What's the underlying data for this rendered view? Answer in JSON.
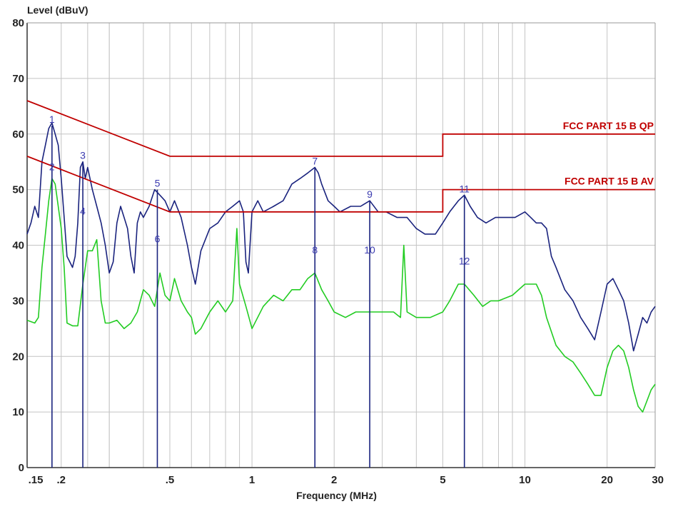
{
  "chart_data": {
    "type": "line",
    "title": "",
    "ylabel": "Level (dBuV)",
    "xlabel": "Frequency (MHz)",
    "x_scale": "log",
    "xlim": [
      0.15,
      30
    ],
    "ylim": [
      0,
      80
    ],
    "grid": true,
    "y_ticks": [
      {
        "v": 0,
        "label": "0"
      },
      {
        "v": 10,
        "label": "10"
      },
      {
        "v": 20,
        "label": "20"
      },
      {
        "v": 30,
        "label": "30"
      },
      {
        "v": 40,
        "label": "40"
      },
      {
        "v": 50,
        "label": "50"
      },
      {
        "v": 60,
        "label": "60"
      },
      {
        "v": 70,
        "label": "70"
      },
      {
        "v": 80,
        "label": "80"
      }
    ],
    "x_ticks": [
      {
        "v": 0.15,
        "label": ".15"
      },
      {
        "v": 0.2,
        "label": ".2"
      },
      {
        "v": 0.5,
        "label": ".5"
      },
      {
        "v": 1,
        "label": "1"
      },
      {
        "v": 2,
        "label": "2"
      },
      {
        "v": 5,
        "label": "5"
      },
      {
        "v": 10,
        "label": "10"
      },
      {
        "v": 20,
        "label": "20"
      },
      {
        "v": 30,
        "label": "30"
      }
    ],
    "limit_lines": [
      {
        "name": "FCC PART 15 B QP",
        "color": "#c00000",
        "points": [
          [
            0.15,
            66
          ],
          [
            0.5,
            56
          ],
          [
            5,
            56
          ],
          [
            5,
            60
          ],
          [
            30,
            60
          ]
        ]
      },
      {
        "name": "FCC PART 15 B AV",
        "color": "#c00000",
        "points": [
          [
            0.15,
            56
          ],
          [
            0.5,
            46
          ],
          [
            5,
            46
          ],
          [
            5,
            50
          ],
          [
            30,
            50
          ]
        ]
      }
    ],
    "series": [
      {
        "color": "#1a237e",
        "points": [
          [
            0.15,
            42
          ],
          [
            0.155,
            44
          ],
          [
            0.16,
            47
          ],
          [
            0.165,
            45
          ],
          [
            0.17,
            55
          ],
          [
            0.175,
            58
          ],
          [
            0.18,
            61
          ],
          [
            0.185,
            62
          ],
          [
            0.19,
            60
          ],
          [
            0.195,
            58
          ],
          [
            0.2,
            52
          ],
          [
            0.205,
            45
          ],
          [
            0.21,
            38
          ],
          [
            0.215,
            37
          ],
          [
            0.22,
            36
          ],
          [
            0.225,
            38
          ],
          [
            0.23,
            44
          ],
          [
            0.235,
            54
          ],
          [
            0.24,
            55
          ],
          [
            0.245,
            52
          ],
          [
            0.25,
            54
          ],
          [
            0.26,
            50
          ],
          [
            0.27,
            47
          ],
          [
            0.28,
            44
          ],
          [
            0.29,
            40
          ],
          [
            0.3,
            35
          ],
          [
            0.31,
            37
          ],
          [
            0.32,
            44
          ],
          [
            0.33,
            47
          ],
          [
            0.34,
            45
          ],
          [
            0.35,
            43
          ],
          [
            0.36,
            38
          ],
          [
            0.37,
            35
          ],
          [
            0.38,
            44
          ],
          [
            0.39,
            46
          ],
          [
            0.4,
            45
          ],
          [
            0.42,
            47
          ],
          [
            0.44,
            50
          ],
          [
            0.46,
            49
          ],
          [
            0.48,
            48
          ],
          [
            0.5,
            46
          ],
          [
            0.52,
            48
          ],
          [
            0.55,
            45
          ],
          [
            0.58,
            40
          ],
          [
            0.6,
            36
          ],
          [
            0.62,
            33
          ],
          [
            0.65,
            39
          ],
          [
            0.7,
            43
          ],
          [
            0.75,
            44
          ],
          [
            0.8,
            46
          ],
          [
            0.85,
            47
          ],
          [
            0.9,
            48
          ],
          [
            0.93,
            46
          ],
          [
            0.95,
            37
          ],
          [
            0.97,
            35
          ],
          [
            1.0,
            46
          ],
          [
            1.05,
            48
          ],
          [
            1.1,
            46
          ],
          [
            1.2,
            47
          ],
          [
            1.3,
            48
          ],
          [
            1.4,
            51
          ],
          [
            1.5,
            52
          ],
          [
            1.6,
            53
          ],
          [
            1.7,
            54
          ],
          [
            1.75,
            53
          ],
          [
            1.8,
            51
          ],
          [
            1.9,
            48
          ],
          [
            2.0,
            47
          ],
          [
            2.1,
            46
          ],
          [
            2.3,
            47
          ],
          [
            2.5,
            47
          ],
          [
            2.7,
            48
          ],
          [
            2.9,
            46
          ],
          [
            3.1,
            46
          ],
          [
            3.4,
            45
          ],
          [
            3.7,
            45
          ],
          [
            4.0,
            43
          ],
          [
            4.3,
            42
          ],
          [
            4.7,
            42
          ],
          [
            5.0,
            44
          ],
          [
            5.3,
            46
          ],
          [
            5.7,
            48
          ],
          [
            6.0,
            49
          ],
          [
            6.3,
            47
          ],
          [
            6.7,
            45
          ],
          [
            7.2,
            44
          ],
          [
            7.8,
            45
          ],
          [
            8.5,
            45
          ],
          [
            9.2,
            45
          ],
          [
            10,
            46
          ],
          [
            10.5,
            45
          ],
          [
            11,
            44
          ],
          [
            11.5,
            44
          ],
          [
            12,
            43
          ],
          [
            12.5,
            38
          ],
          [
            13,
            36
          ],
          [
            14,
            32
          ],
          [
            15,
            30
          ],
          [
            16,
            27
          ],
          [
            17,
            25
          ],
          [
            18,
            23
          ],
          [
            19,
            28
          ],
          [
            20,
            33
          ],
          [
            21,
            34
          ],
          [
            22,
            32
          ],
          [
            23,
            30
          ],
          [
            24,
            26
          ],
          [
            25,
            21
          ],
          [
            26,
            24
          ],
          [
            27,
            27
          ],
          [
            28,
            26
          ],
          [
            29,
            28
          ],
          [
            30,
            29
          ]
        ]
      },
      {
        "color": "#22cc22",
        "points": [
          [
            0.15,
            26.5
          ],
          [
            0.16,
            26
          ],
          [
            0.165,
            27
          ],
          [
            0.17,
            36
          ],
          [
            0.175,
            42
          ],
          [
            0.18,
            48
          ],
          [
            0.185,
            52
          ],
          [
            0.19,
            51
          ],
          [
            0.195,
            47
          ],
          [
            0.2,
            43
          ],
          [
            0.205,
            36
          ],
          [
            0.21,
            26
          ],
          [
            0.22,
            25.5
          ],
          [
            0.23,
            25.5
          ],
          [
            0.24,
            33
          ],
          [
            0.25,
            39
          ],
          [
            0.26,
            39
          ],
          [
            0.27,
            41
          ],
          [
            0.28,
            30
          ],
          [
            0.29,
            26
          ],
          [
            0.3,
            26
          ],
          [
            0.32,
            26.5
          ],
          [
            0.34,
            25
          ],
          [
            0.36,
            26
          ],
          [
            0.38,
            28
          ],
          [
            0.4,
            32
          ],
          [
            0.42,
            31
          ],
          [
            0.44,
            29
          ],
          [
            0.46,
            35
          ],
          [
            0.48,
            31
          ],
          [
            0.5,
            30
          ],
          [
            0.52,
            34
          ],
          [
            0.55,
            30
          ],
          [
            0.58,
            28
          ],
          [
            0.6,
            27
          ],
          [
            0.62,
            24
          ],
          [
            0.65,
            25
          ],
          [
            0.7,
            28
          ],
          [
            0.75,
            30
          ],
          [
            0.8,
            28
          ],
          [
            0.85,
            30
          ],
          [
            0.88,
            43
          ],
          [
            0.9,
            33
          ],
          [
            0.95,
            29
          ],
          [
            1.0,
            25
          ],
          [
            1.1,
            29
          ],
          [
            1.2,
            31
          ],
          [
            1.3,
            30
          ],
          [
            1.4,
            32
          ],
          [
            1.5,
            32
          ],
          [
            1.6,
            34
          ],
          [
            1.7,
            35
          ],
          [
            1.8,
            32
          ],
          [
            1.9,
            30
          ],
          [
            2.0,
            28
          ],
          [
            2.2,
            27
          ],
          [
            2.4,
            28
          ],
          [
            2.7,
            28
          ],
          [
            3.0,
            28
          ],
          [
            3.3,
            28
          ],
          [
            3.5,
            27
          ],
          [
            3.6,
            40
          ],
          [
            3.7,
            28
          ],
          [
            4.0,
            27
          ],
          [
            4.5,
            27
          ],
          [
            5.0,
            28
          ],
          [
            5.3,
            30
          ],
          [
            5.7,
            33
          ],
          [
            6.0,
            33
          ],
          [
            6.5,
            31
          ],
          [
            7.0,
            29
          ],
          [
            7.5,
            30
          ],
          [
            8.0,
            30
          ],
          [
            9.0,
            31
          ],
          [
            10,
            33
          ],
          [
            11,
            33
          ],
          [
            11.5,
            31
          ],
          [
            12,
            27
          ],
          [
            13,
            22
          ],
          [
            14,
            20
          ],
          [
            15,
            19
          ],
          [
            16,
            17
          ],
          [
            17,
            15
          ],
          [
            18,
            13
          ],
          [
            19,
            13
          ],
          [
            20,
            18
          ],
          [
            21,
            21
          ],
          [
            22,
            22
          ],
          [
            23,
            21
          ],
          [
            24,
            18
          ],
          [
            25,
            14
          ],
          [
            26,
            11
          ],
          [
            27,
            10
          ],
          [
            28,
            12
          ],
          [
            29,
            14
          ],
          [
            30,
            15
          ]
        ]
      }
    ],
    "markers": [
      {
        "label": "1",
        "x": 0.185,
        "y": 61.5
      },
      {
        "label": "2",
        "x": 0.185,
        "y": 53
      },
      {
        "label": "3",
        "x": 0.24,
        "y": 55
      },
      {
        "label": "4",
        "x": 0.24,
        "y": 45
      },
      {
        "label": "5",
        "x": 0.45,
        "y": 50
      },
      {
        "label": "6",
        "x": 0.45,
        "y": 40
      },
      {
        "label": "7",
        "x": 1.7,
        "y": 54
      },
      {
        "label": "8",
        "x": 1.7,
        "y": 38
      },
      {
        "label": "9",
        "x": 2.7,
        "y": 48
      },
      {
        "label": "10",
        "x": 2.7,
        "y": 38
      },
      {
        "label": "11",
        "x": 6.0,
        "y": 49
      },
      {
        "label": "12",
        "x": 6.0,
        "y": 36
      }
    ]
  }
}
